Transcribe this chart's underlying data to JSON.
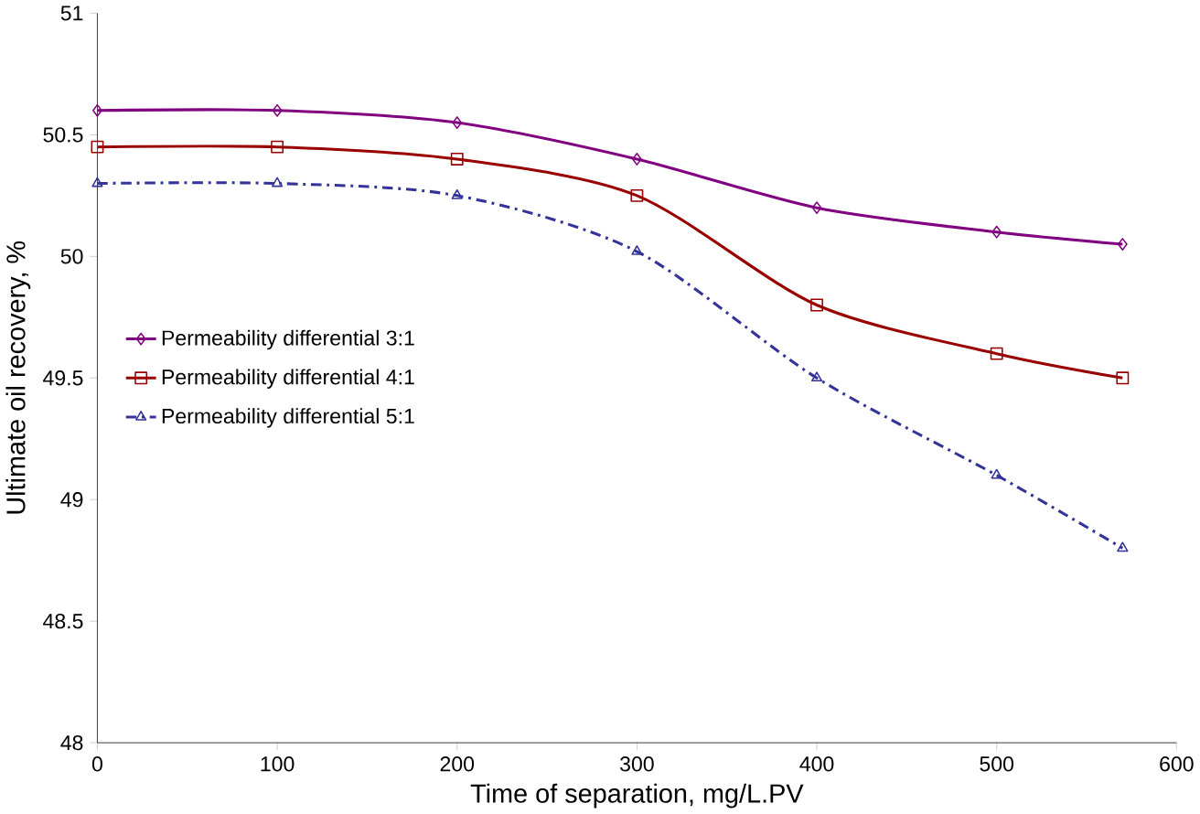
{
  "chart_data": {
    "type": "line",
    "xlabel": "Time of separation, mg/L.PV",
    "ylabel": "Ultimate oil recovery, %",
    "x": [
      0,
      100,
      200,
      300,
      400,
      500,
      570
    ],
    "series": [
      {
        "name": "Permeability differential 3:1",
        "color": "#800080",
        "values": [
          50.6,
          50.6,
          50.55,
          50.4,
          50.2,
          50.1,
          50.05
        ],
        "marker": "diamond",
        "line_style": "solid"
      },
      {
        "name": "Permeability differential 4:1",
        "color": "#990000",
        "values": [
          50.45,
          50.45,
          50.4,
          50.25,
          49.8,
          49.6,
          49.5
        ],
        "marker": "square",
        "line_style": "solid"
      },
      {
        "name": "Permeability differential 5:1",
        "color": "#333399",
        "values": [
          50.3,
          50.3,
          50.25,
          50.02,
          49.5,
          49.1,
          48.8
        ],
        "marker": "triangle",
        "line_style": "dashed"
      }
    ],
    "xlim": [
      0,
      600
    ],
    "xticks": [
      0,
      100,
      200,
      300,
      400,
      500,
      600
    ],
    "ylim": [
      48,
      51
    ],
    "yticks": [
      48,
      48.5,
      49,
      49.5,
      50,
      50.5,
      51
    ],
    "grid": false,
    "legend": "left"
  }
}
